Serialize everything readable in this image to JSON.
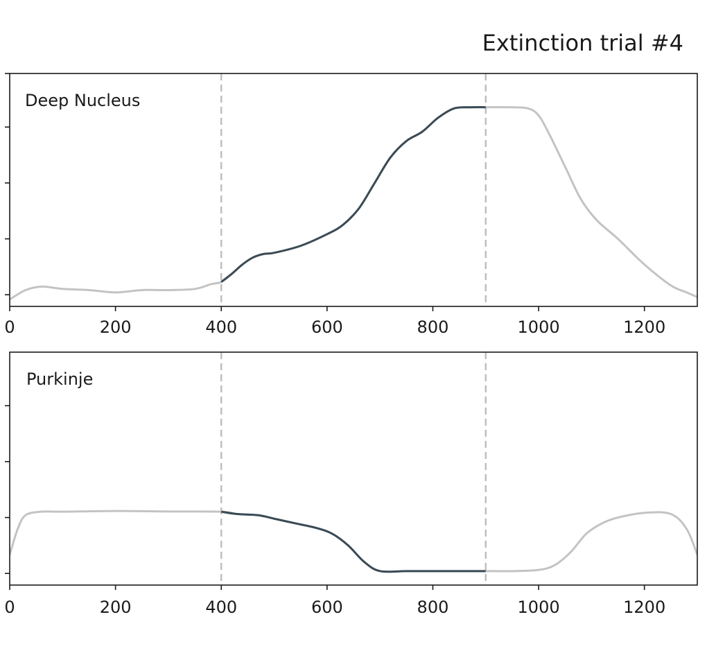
{
  "chart_data": [
    {
      "type": "line",
      "title": "Extinction trial #4",
      "panel_label": "Deep Nucleus",
      "xlim": [
        0,
        1300
      ],
      "ylim": [
        0,
        1
      ],
      "x_ticks": [
        0,
        200,
        400,
        600,
        800,
        1000,
        1200
      ],
      "y_tick_count": 5,
      "y_ticks": [
        0.05,
        0.29,
        0.53,
        0.77,
        1.0
      ],
      "vlines": [
        400,
        900
      ],
      "highlight_range": [
        400,
        900
      ],
      "grid": false,
      "series": [
        {
          "x": [
            0,
            30,
            60,
            100,
            150,
            200,
            250,
            300,
            350,
            380,
            400,
            420,
            440,
            460,
            480,
            500,
            550,
            600,
            630,
            660,
            690,
            720,
            750,
            780,
            810,
            840,
            870,
            900,
            950,
            980,
            1000,
            1020,
            1050,
            1080,
            1110,
            1150,
            1200,
            1250,
            1280,
            1300
          ],
          "y": [
            0.03,
            0.07,
            0.085,
            0.075,
            0.07,
            0.06,
            0.07,
            0.07,
            0.075,
            0.095,
            0.105,
            0.14,
            0.18,
            0.21,
            0.225,
            0.23,
            0.26,
            0.31,
            0.35,
            0.42,
            0.53,
            0.64,
            0.71,
            0.75,
            0.81,
            0.85,
            0.855,
            0.855,
            0.855,
            0.85,
            0.82,
            0.74,
            0.6,
            0.46,
            0.37,
            0.29,
            0.18,
            0.09,
            0.06,
            0.04
          ]
        }
      ]
    },
    {
      "type": "line",
      "panel_label": "Purkinje",
      "xlim": [
        0,
        1300
      ],
      "ylim": [
        0,
        1
      ],
      "x_ticks": [
        0,
        200,
        400,
        600,
        800,
        1000,
        1200
      ],
      "y_tick_count": 4,
      "y_ticks": [
        0.05,
        0.29,
        0.53,
        0.77
      ],
      "vlines": [
        400,
        900
      ],
      "highlight_range": [
        400,
        900
      ],
      "grid": false,
      "series": [
        {
          "x": [
            0,
            15,
            30,
            60,
            100,
            200,
            300,
            400,
            430,
            470,
            500,
            540,
            580,
            610,
            640,
            670,
            700,
            750,
            800,
            900,
            950,
            1000,
            1030,
            1060,
            1090,
            1120,
            1150,
            1200,
            1250,
            1280,
            1300
          ],
          "y": [
            0.13,
            0.24,
            0.3,
            0.315,
            0.315,
            0.318,
            0.316,
            0.315,
            0.305,
            0.3,
            0.285,
            0.265,
            0.245,
            0.22,
            0.17,
            0.1,
            0.06,
            0.06,
            0.06,
            0.06,
            0.06,
            0.065,
            0.085,
            0.14,
            0.22,
            0.265,
            0.29,
            0.31,
            0.305,
            0.24,
            0.13
          ]
        }
      ]
    }
  ]
}
